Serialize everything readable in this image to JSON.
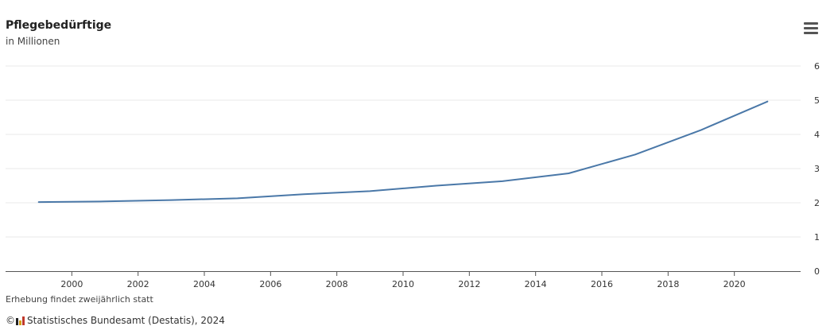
{
  "header": {
    "title": "Pflegebedürftige",
    "subtitle": "in Millionen"
  },
  "menu_icon": "hamburger-menu-icon",
  "footer": {
    "note": "Erhebung findet zweijährlich statt",
    "credits": "© Statistisches Bundesamt (Destatis), 2024",
    "credits_text": "Statistisches Bundesamt (Destatis), 2024"
  },
  "colors": {
    "line": "#4a78a8",
    "grid": "#e8e8e8",
    "axis": "#555555",
    "logo": [
      "#222222",
      "#d4a017",
      "#c0392b"
    ]
  },
  "chart_data": {
    "type": "line",
    "title": "Pflegebedürftige",
    "subtitle": "in Millionen",
    "xlabel": "",
    "ylabel": "",
    "y_axis_side": "right",
    "ylim": [
      0,
      6
    ],
    "xlim": [
      1998,
      2022
    ],
    "yticks": [
      0,
      1,
      2,
      3,
      4,
      5,
      6
    ],
    "xticks": [
      2000,
      2002,
      2004,
      2006,
      2008,
      2010,
      2012,
      2014,
      2016,
      2018,
      2020
    ],
    "grid": true,
    "legend": "none",
    "series": [
      {
        "x": [
          1999,
          2001,
          2003,
          2005,
          2007,
          2009,
          2011,
          2013,
          2015,
          2017,
          2019,
          2021
        ],
        "values": [
          2.02,
          2.04,
          2.08,
          2.13,
          2.25,
          2.34,
          2.5,
          2.63,
          2.86,
          3.41,
          4.13,
          4.96
        ]
      }
    ]
  }
}
